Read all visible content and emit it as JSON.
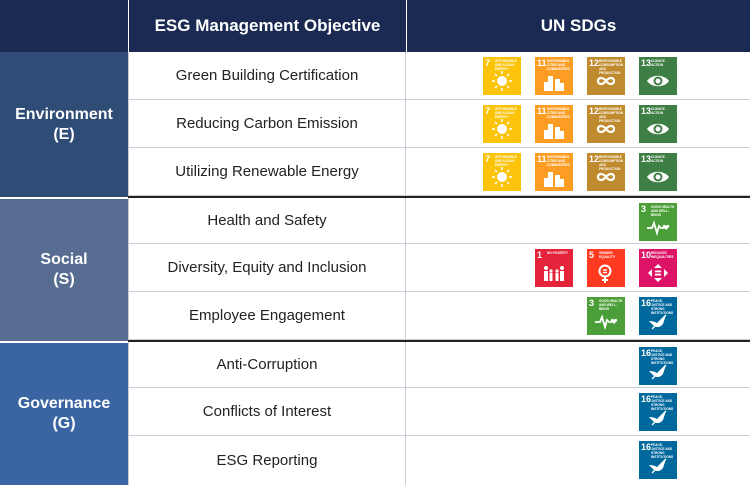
{
  "header": {
    "objective_col": "ESG Management Objective",
    "sdg_col": "UN SDGs"
  },
  "categories": [
    {
      "line1": "Environment",
      "line2": "(E)"
    },
    {
      "line1": "Social",
      "line2": "(S)"
    },
    {
      "line1": "Governance",
      "line2": "(G)"
    }
  ],
  "sdg_labels": {
    "g1": {
      "num": "1",
      "title": "No Poverty"
    },
    "g3": {
      "num": "3",
      "title": "Good Health and Well-Being"
    },
    "g5": {
      "num": "5",
      "title": "Gender Equality"
    },
    "g7": {
      "num": "7",
      "title": "Affordable and Clean Energy"
    },
    "g10": {
      "num": "10",
      "title": "Reduced Inequalities"
    },
    "g11": {
      "num": "11",
      "title": "Sustainable Cities and Communities"
    },
    "g12": {
      "num": "12",
      "title": "Responsible Consumption and Production"
    },
    "g13": {
      "num": "13",
      "title": "Climate Action"
    },
    "g16": {
      "num": "16",
      "title": "Peace, Justice and Strong Institutions"
    }
  },
  "rows": [
    {
      "objective": "Green Building Certification",
      "sdgs": [
        "g7",
        "g11",
        "g12",
        "g13"
      ]
    },
    {
      "objective": "Reducing Carbon Emission",
      "sdgs": [
        "g7",
        "g11",
        "g12",
        "g13"
      ]
    },
    {
      "objective": "Utilizing Renewable Energy",
      "sdgs": [
        "g7",
        "g11",
        "g12",
        "g13"
      ]
    },
    {
      "objective": "Health and Safety",
      "sdgs": [
        "g3"
      ]
    },
    {
      "objective": "Diversity, Equity and Inclusion",
      "sdgs": [
        "g1",
        "g5",
        "g10"
      ]
    },
    {
      "objective": "Employee Engagement",
      "sdgs": [
        "g3",
        "g16"
      ]
    },
    {
      "objective": "Anti-Corruption",
      "sdgs": [
        "g16"
      ]
    },
    {
      "objective": "Conflicts of Interest",
      "sdgs": [
        "g16"
      ]
    },
    {
      "objective": "ESG Reporting",
      "sdgs": [
        "g16"
      ]
    }
  ]
}
